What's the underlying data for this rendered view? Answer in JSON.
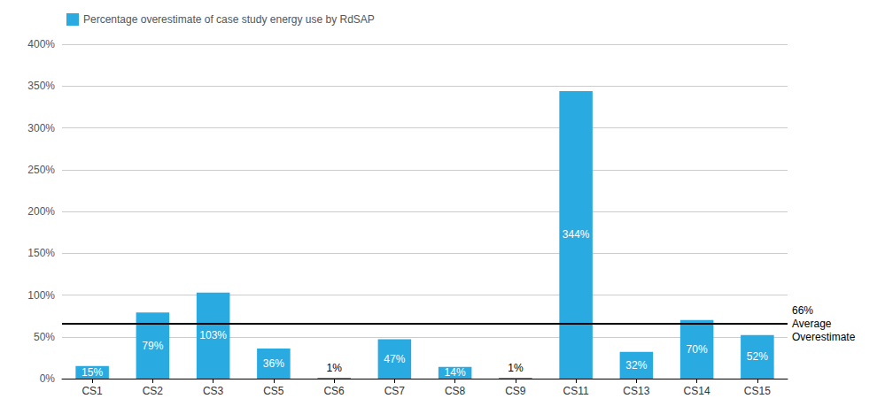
{
  "chart_data": {
    "type": "bar",
    "categories": [
      "CS1",
      "CS2",
      "CS3",
      "CS5",
      "CS6",
      "CS7",
      "CS8",
      "CS9",
      "CS11",
      "CS13",
      "CS14",
      "CS15"
    ],
    "series": [
      {
        "name": "Percentage overestimate of case study energy use by RdSAP",
        "color": "#29ABE2",
        "values": [
          15,
          79,
          103,
          36,
          1,
          47,
          14,
          1,
          344,
          32,
          70,
          52
        ],
        "value_labels": [
          "15%",
          "79%",
          "103%",
          "36%",
          "1%",
          "47%",
          "14%",
          "1%",
          "344%",
          "32%",
          "70%",
          "52%"
        ]
      }
    ],
    "ylim": [
      0,
      400
    ],
    "yticks": [
      {
        "value": 0,
        "label": "0%"
      },
      {
        "value": 50,
        "label": "50%"
      },
      {
        "value": 100,
        "label": "100%"
      },
      {
        "value": 150,
        "label": "150%"
      },
      {
        "value": 200,
        "label": "200%"
      },
      {
        "value": 250,
        "label": "250%"
      },
      {
        "value": 300,
        "label": "300%"
      },
      {
        "value": 350,
        "label": "350%"
      },
      {
        "value": 400,
        "label": "400%"
      }
    ],
    "grid": true,
    "legend": "upper left",
    "data_labels": true,
    "annotations": [
      {
        "type": "hline",
        "y": 66,
        "text": [
          "66%",
          "Average",
          "Overestimate"
        ]
      }
    ]
  }
}
